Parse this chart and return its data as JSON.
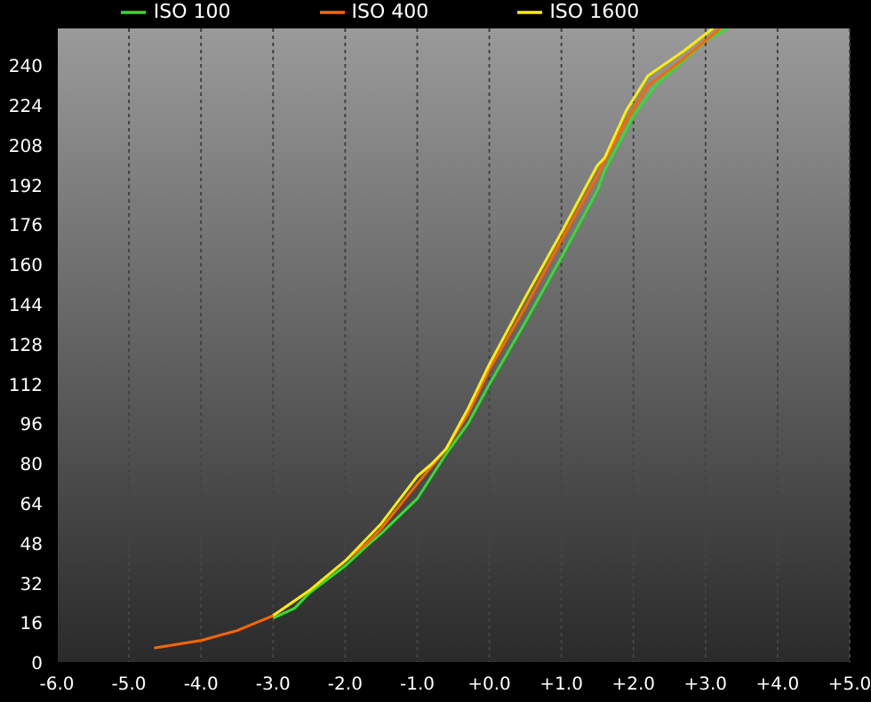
{
  "chart_data": {
    "type": "line",
    "legend": "top",
    "grid": "x",
    "xlim": [
      -6,
      5
    ],
    "ylim": [
      0,
      255
    ],
    "xticks": [
      {
        "value": -6,
        "label": "-6.0"
      },
      {
        "value": -5,
        "label": "-5.0"
      },
      {
        "value": -4,
        "label": "-4.0"
      },
      {
        "value": -3,
        "label": "-3.0"
      },
      {
        "value": -2,
        "label": "-2.0"
      },
      {
        "value": -1,
        "label": "-1.0"
      },
      {
        "value": 0,
        "label": "+0.0"
      },
      {
        "value": 1,
        "label": "+1.0"
      },
      {
        "value": 2,
        "label": "+2.0"
      },
      {
        "value": 3,
        "label": "+3.0"
      },
      {
        "value": 4,
        "label": "+4.0"
      },
      {
        "value": 5,
        "label": "+5.0"
      }
    ],
    "yticks": [
      0,
      16,
      32,
      48,
      64,
      80,
      96,
      112,
      128,
      144,
      160,
      176,
      192,
      208,
      224,
      240
    ],
    "series": [
      {
        "name": "ISO 100",
        "color": "#33dd33",
        "x": [
          -3,
          -2.7,
          -2.5,
          -2,
          -1.7,
          -1.5,
          -1,
          -0.6,
          -0.3,
          0,
          0.5,
          1,
          1.5,
          1.6,
          2,
          2.3,
          3,
          3.3
        ],
        "values": [
          18,
          22,
          28,
          39,
          47,
          52,
          66,
          84,
          96,
          112,
          137,
          163,
          190,
          198,
          220,
          232,
          250,
          255
        ]
      },
      {
        "name": "ISO 400",
        "color": "#ff6600",
        "x": [
          -4.65,
          -4,
          -3.5,
          -3,
          -2.5,
          -2,
          -1.7,
          -1.5,
          -1,
          -0.6,
          -0.3,
          0,
          0.5,
          1,
          1.5,
          1.6,
          1.9,
          2.2,
          2.7,
          3.2
        ],
        "values": [
          6,
          9,
          13,
          19,
          29,
          41,
          48,
          54,
          72,
          86,
          100,
          118,
          143,
          170,
          196,
          202,
          218,
          232,
          243,
          255
        ]
      },
      {
        "name": "ISO 1600",
        "color": "#ffee00",
        "x": [
          -3,
          -2.5,
          -2,
          -1.5,
          -1,
          -0.8,
          -0.6,
          -0.3,
          0,
          0.5,
          1,
          1.5,
          1.6,
          1.9,
          2.2,
          2.7,
          3.1
        ],
        "values": [
          19,
          29,
          41,
          56,
          75,
          80,
          86,
          102,
          120,
          147,
          173,
          200,
          203,
          222,
          236,
          246,
          255
        ]
      }
    ]
  }
}
